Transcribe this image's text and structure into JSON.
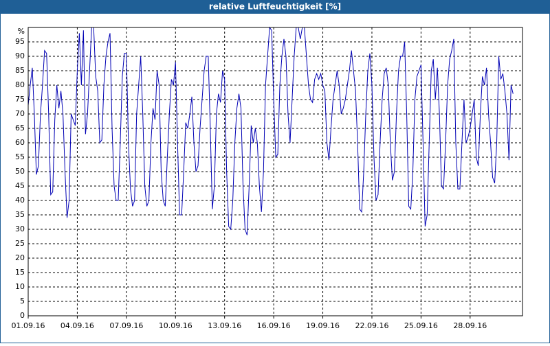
{
  "chart_data": {
    "type": "line",
    "title": "relative Luftfeuchtigkeit [%]",
    "y_label": "%",
    "x": [
      0,
      0.125,
      0.25,
      0.375,
      0.5,
      0.625,
      0.75,
      0.875,
      1,
      1.125,
      1.25,
      1.375,
      1.5,
      1.625,
      1.75,
      1.875,
      2,
      2.125,
      2.25,
      2.375,
      2.5,
      2.625,
      2.75,
      2.875,
      3,
      3.125,
      3.25,
      3.375,
      3.5,
      3.625,
      3.75,
      3.875,
      4,
      4.125,
      4.25,
      4.375,
      4.5,
      4.625,
      4.75,
      4.875,
      5,
      5.125,
      5.25,
      5.375,
      5.5,
      5.625,
      5.75,
      5.875,
      6,
      6.125,
      6.25,
      6.375,
      6.5,
      6.625,
      6.75,
      6.875,
      7,
      7.125,
      7.25,
      7.375,
      7.5,
      7.625,
      7.75,
      7.875,
      8,
      8.125,
      8.25,
      8.375,
      8.5,
      8.625,
      8.75,
      8.875,
      9,
      9.125,
      9.25,
      9.375,
      9.5,
      9.625,
      9.75,
      9.875,
      10,
      10.125,
      10.25,
      10.375,
      10.5,
      10.625,
      10.75,
      10.875,
      11,
      11.125,
      11.25,
      11.375,
      11.5,
      11.625,
      11.75,
      11.875,
      12,
      12.125,
      12.25,
      12.375,
      12.5,
      12.625,
      12.75,
      12.875,
      13,
      13.125,
      13.25,
      13.375,
      13.5,
      13.625,
      13.75,
      13.875,
      14,
      14.125,
      14.25,
      14.375,
      14.5,
      14.625,
      14.75,
      14.875,
      15,
      15.125,
      15.25,
      15.375,
      15.5,
      15.625,
      15.75,
      15.875,
      16,
      16.125,
      16.25,
      16.375,
      16.5,
      16.625,
      16.75,
      16.875,
      17,
      17.125,
      17.25,
      17.375,
      17.5,
      17.625,
      17.75,
      17.875,
      18,
      18.125,
      18.25,
      18.375,
      18.5,
      18.625,
      18.75,
      18.875,
      19,
      19.125,
      19.25,
      19.375,
      19.5,
      19.625,
      19.75,
      19.875,
      20,
      20.125,
      20.25,
      20.375,
      20.5,
      20.625,
      20.75,
      20.875,
      21,
      21.125,
      21.25,
      21.375,
      21.5,
      21.625,
      21.75,
      21.875,
      22,
      22.125,
      22.25,
      22.375,
      22.5,
      22.625,
      22.75,
      22.875,
      23,
      23.125,
      23.25,
      23.375,
      23.5,
      23.625,
      23.75,
      23.875,
      24,
      24.125,
      24.25,
      24.375,
      24.5,
      24.625,
      24.75,
      24.875,
      25,
      25.125,
      25.25,
      25.375,
      25.5,
      25.625,
      25.75,
      25.875,
      26,
      26.125,
      26.25,
      26.375,
      26.5,
      26.625,
      26.75,
      26.875,
      27,
      27.125,
      27.25,
      27.375,
      27.5,
      27.625,
      27.75,
      27.875,
      28,
      28.125,
      28.25,
      28.375,
      28.5,
      28.625,
      28.75,
      28.875,
      29,
      29.125,
      29.25,
      29.375,
      29.5,
      29.625
    ],
    "series": [
      {
        "color": "#0000b4",
        "values": [
          73,
          80,
          86,
          70,
          49,
          52,
          70,
          80,
          92,
          91,
          70,
          42,
          43,
          68,
          80,
          72,
          78,
          70,
          50,
          34,
          40,
          70,
          68,
          66,
          85,
          98,
          80,
          99,
          63,
          70,
          85,
          100,
          100,
          83,
          78,
          60,
          61,
          80,
          90,
          95,
          98,
          65,
          45,
          40,
          40,
          60,
          83,
          91,
          91,
          60,
          44,
          38,
          40,
          70,
          80,
          90,
          70,
          45,
          38,
          40,
          60,
          72,
          68,
          85,
          80,
          50,
          40,
          38,
          55,
          70,
          82,
          80,
          88,
          60,
          35,
          35,
          50,
          67,
          65,
          70,
          76,
          60,
          50,
          52,
          65,
          75,
          85,
          90,
          90,
          65,
          37,
          45,
          70,
          77,
          74,
          85,
          82,
          50,
          31,
          30,
          40,
          60,
          72,
          77,
          72,
          45,
          30,
          28,
          45,
          66,
          60,
          65,
          60,
          45,
          36,
          50,
          80,
          90,
          100,
          99,
          75,
          55,
          56,
          80,
          90,
          96,
          90,
          70,
          60,
          75,
          90,
          100,
          100,
          96,
          100,
          100,
          90,
          80,
          75,
          74,
          82,
          84,
          82,
          84,
          80,
          78,
          60,
          54,
          65,
          75,
          80,
          85,
          80,
          70,
          72,
          75,
          80,
          85,
          92,
          85,
          78,
          60,
          37,
          36,
          50,
          70,
          85,
          91,
          80,
          55,
          40,
          42,
          60,
          75,
          84,
          86,
          80,
          60,
          47,
          50,
          70,
          85,
          90,
          90,
          95,
          70,
          38,
          37,
          50,
          75,
          83,
          85,
          87,
          60,
          31,
          35,
          60,
          85,
          89,
          75,
          86,
          70,
          45,
          44,
          60,
          80,
          89,
          92,
          96,
          60,
          44,
          44,
          60,
          75,
          60,
          62,
          65,
          70,
          75,
          55,
          52,
          70,
          83,
          80,
          86,
          70,
          60,
          48,
          46,
          60,
          90,
          82,
          84,
          78,
          70,
          54,
          80,
          77
        ]
      }
    ],
    "xlim": [
      0,
      30.2
    ],
    "xticks": [
      {
        "value": 0,
        "label": "01.09.16"
      },
      {
        "value": 3,
        "label": "04.09.16"
      },
      {
        "value": 6,
        "label": "07.09.16"
      },
      {
        "value": 9,
        "label": "10.09.16"
      },
      {
        "value": 12,
        "label": "13.09.16"
      },
      {
        "value": 15,
        "label": "16.09.16"
      },
      {
        "value": 18,
        "label": "19.09.16"
      },
      {
        "value": 21,
        "label": "22.09.16"
      },
      {
        "value": 24,
        "label": "25.09.16"
      },
      {
        "value": 27,
        "label": "28.09.16"
      }
    ],
    "ylim": [
      0,
      100
    ],
    "yticks": [
      0,
      5,
      10,
      15,
      20,
      25,
      30,
      35,
      40,
      45,
      50,
      55,
      60,
      65,
      70,
      75,
      80,
      85,
      90,
      95
    ],
    "grid": true
  }
}
